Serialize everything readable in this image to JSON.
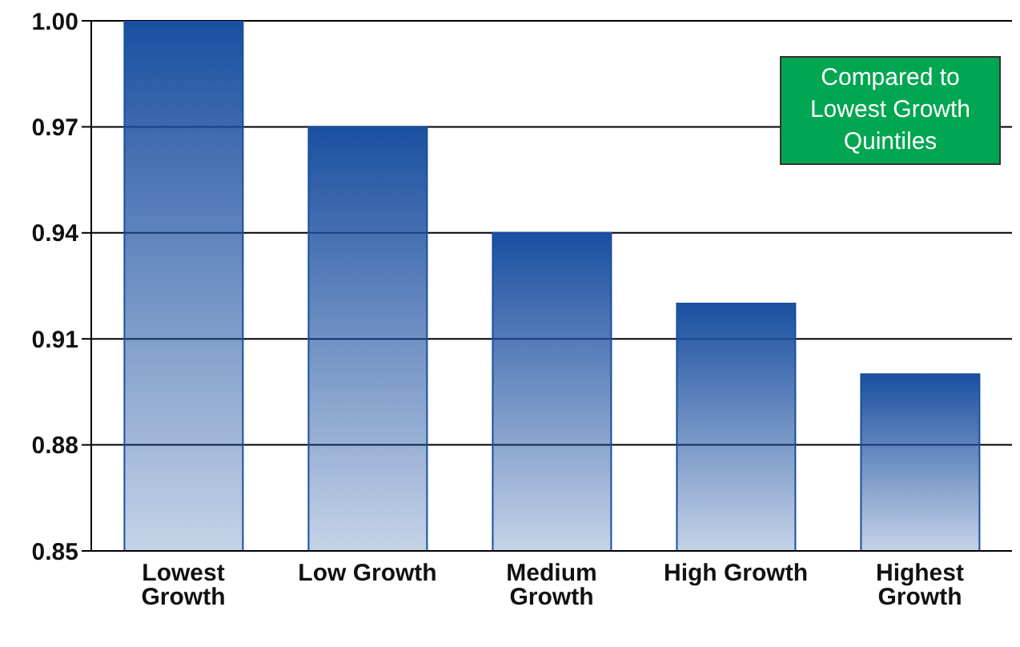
{
  "chart_data": {
    "type": "bar",
    "categories": [
      "Lowest Growth",
      "Low Growth",
      "Medium Growth",
      "High Growth",
      "Highest Growth"
    ],
    "values": [
      1.0,
      0.97,
      0.94,
      0.92,
      0.9
    ],
    "color": "#1a4fa0",
    "ylim": [
      0.85,
      1.0
    ],
    "yticks": [
      {
        "value": 0.85,
        "label": "0.85"
      },
      {
        "value": 0.88,
        "label": "0.88"
      },
      {
        "value": 0.91,
        "label": "0.91"
      },
      {
        "value": 0.94,
        "label": "0.94"
      },
      {
        "value": 0.97,
        "label": "0.97"
      },
      {
        "value": 1.0,
        "label": "1.00"
      }
    ],
    "grid": "y",
    "annotations": [
      "Compared to Lowest Growth Quintiles"
    ]
  }
}
